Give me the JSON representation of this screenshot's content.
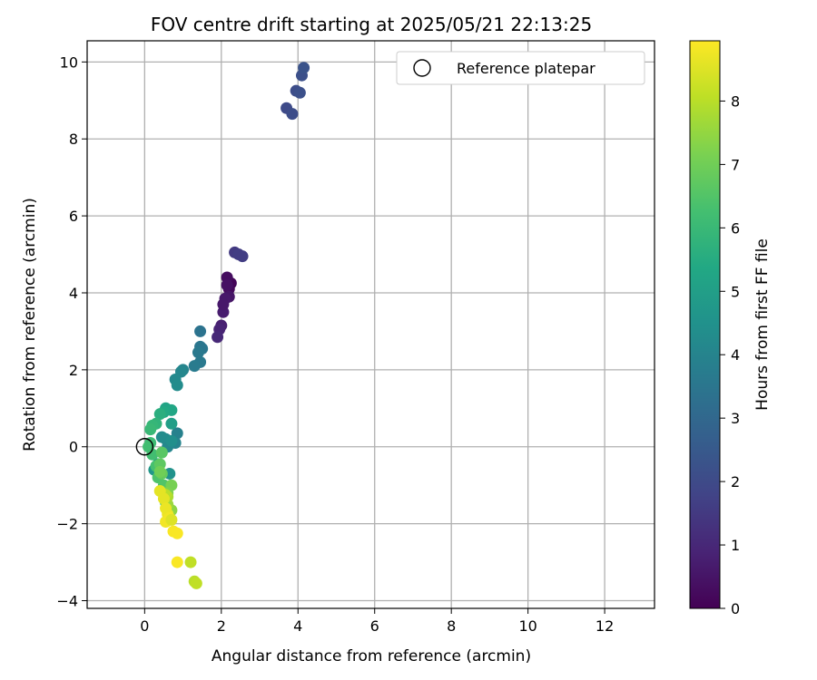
{
  "chart_data": {
    "type": "scatter",
    "title": "FOV centre drift starting at 2025/05/21 22:13:25",
    "xlabel": "Angular distance from reference (arcmin)",
    "ylabel": "Rotation from reference (arcmin)",
    "xlim": [
      -1.5,
      13.3
    ],
    "ylim": [
      -4.2,
      10.55
    ],
    "xticks": [
      0,
      2,
      4,
      6,
      8,
      10,
      12
    ],
    "yticks": [
      -4,
      -2,
      0,
      2,
      4,
      6,
      8,
      10
    ],
    "grid": true,
    "legend": {
      "placement": "top-right",
      "entries": [
        "Reference platepar"
      ]
    },
    "reference_point": {
      "name": "Reference platepar",
      "x": 0,
      "y": 0,
      "marker": "open-circle"
    },
    "colorbar": {
      "label": "Hours from first FF file",
      "colormap": "viridis",
      "range": [
        0,
        8.95
      ],
      "ticks": [
        0,
        1,
        2,
        3,
        4,
        5,
        6,
        7,
        8
      ]
    },
    "points": [
      {
        "x": 2.25,
        "y": 4.25,
        "c": 0.1
      },
      {
        "x": 2.2,
        "y": 4.1,
        "c": 0.2
      },
      {
        "x": 2.15,
        "y": 4.4,
        "c": 0.3
      },
      {
        "x": 2.2,
        "y": 3.9,
        "c": 0.5
      },
      {
        "x": 2.1,
        "y": 3.85,
        "c": 0.6
      },
      {
        "x": 2.05,
        "y": 3.5,
        "c": 0.7
      },
      {
        "x": 2.0,
        "y": 3.15,
        "c": 0.8
      },
      {
        "x": 1.95,
        "y": 3.05,
        "c": 0.9
      },
      {
        "x": 1.9,
        "y": 2.85,
        "c": 1.0
      },
      {
        "x": 2.05,
        "y": 3.7,
        "c": 0.6
      },
      {
        "x": 2.15,
        "y": 4.2,
        "c": 0.4
      },
      {
        "x": 2.35,
        "y": 5.05,
        "c": 1.5
      },
      {
        "x": 2.45,
        "y": 5.0,
        "c": 1.6
      },
      {
        "x": 2.55,
        "y": 4.95,
        "c": 1.6
      },
      {
        "x": 3.7,
        "y": 8.8,
        "c": 2.0
      },
      {
        "x": 3.85,
        "y": 8.65,
        "c": 2.1
      },
      {
        "x": 3.95,
        "y": 9.25,
        "c": 2.1
      },
      {
        "x": 4.05,
        "y": 9.2,
        "c": 2.2
      },
      {
        "x": 4.1,
        "y": 9.65,
        "c": 2.2
      },
      {
        "x": 4.15,
        "y": 9.85,
        "c": 2.3
      },
      {
        "x": 1.45,
        "y": 3.0,
        "c": 3.4
      },
      {
        "x": 1.45,
        "y": 2.6,
        "c": 3.5
      },
      {
        "x": 1.5,
        "y": 2.55,
        "c": 3.5
      },
      {
        "x": 1.4,
        "y": 2.45,
        "c": 3.6
      },
      {
        "x": 1.45,
        "y": 2.2,
        "c": 3.6
      },
      {
        "x": 1.3,
        "y": 2.1,
        "c": 3.7
      },
      {
        "x": 1.0,
        "y": 2.0,
        "c": 4.0
      },
      {
        "x": 0.95,
        "y": 1.95,
        "c": 4.1
      },
      {
        "x": 0.8,
        "y": 1.75,
        "c": 4.2
      },
      {
        "x": 0.85,
        "y": 1.6,
        "c": 4.3
      },
      {
        "x": 0.85,
        "y": 0.35,
        "c": 3.9
      },
      {
        "x": 0.8,
        "y": 0.1,
        "c": 4.0
      },
      {
        "x": 0.6,
        "y": 0.0,
        "c": 4.1
      },
      {
        "x": 0.55,
        "y": 0.2,
        "c": 4.2
      },
      {
        "x": 0.45,
        "y": 0.25,
        "c": 4.3
      },
      {
        "x": 0.7,
        "y": 0.15,
        "c": 4.4
      },
      {
        "x": 0.65,
        "y": -0.7,
        "c": 4.5
      },
      {
        "x": 0.35,
        "y": -0.45,
        "c": 4.6
      },
      {
        "x": 0.25,
        "y": -0.6,
        "c": 4.7
      },
      {
        "x": 0.7,
        "y": 0.6,
        "c": 5.0
      },
      {
        "x": 0.55,
        "y": 1.0,
        "c": 5.2
      },
      {
        "x": 0.7,
        "y": 0.95,
        "c": 5.3
      },
      {
        "x": 0.5,
        "y": 0.9,
        "c": 5.4
      },
      {
        "x": 0.4,
        "y": 0.85,
        "c": 5.6
      },
      {
        "x": 0.3,
        "y": 0.6,
        "c": 5.8
      },
      {
        "x": 0.2,
        "y": 0.55,
        "c": 5.9
      },
      {
        "x": 0.15,
        "y": 0.45,
        "c": 6.0
      },
      {
        "x": 0.15,
        "y": 0.1,
        "c": 6.1
      },
      {
        "x": 0.1,
        "y": 0.0,
        "c": 6.2
      },
      {
        "x": 0.2,
        "y": -0.2,
        "c": 6.2
      },
      {
        "x": 0.3,
        "y": -0.5,
        "c": 6.3
      },
      {
        "x": 0.35,
        "y": -0.8,
        "c": 6.4
      },
      {
        "x": 0.5,
        "y": -1.0,
        "c": 6.5
      },
      {
        "x": 0.55,
        "y": -1.45,
        "c": 6.6
      },
      {
        "x": 0.45,
        "y": -0.15,
        "c": 6.6
      },
      {
        "x": 0.4,
        "y": -0.45,
        "c": 6.7
      },
      {
        "x": 0.45,
        "y": -0.7,
        "c": 6.8
      },
      {
        "x": 0.4,
        "y": -0.65,
        "c": 7.0
      },
      {
        "x": 0.7,
        "y": -1.0,
        "c": 7.1
      },
      {
        "x": 0.6,
        "y": -1.2,
        "c": 7.2
      },
      {
        "x": 0.7,
        "y": -1.65,
        "c": 7.4
      },
      {
        "x": 0.6,
        "y": -1.5,
        "c": 7.6
      },
      {
        "x": 0.6,
        "y": -1.3,
        "c": 7.8
      },
      {
        "x": 0.55,
        "y": -1.25,
        "c": 8.0
      },
      {
        "x": 1.2,
        "y": -3.0,
        "c": 8.1
      },
      {
        "x": 1.3,
        "y": -3.5,
        "c": 8.0
      },
      {
        "x": 1.35,
        "y": -3.55,
        "c": 8.1
      },
      {
        "x": 0.4,
        "y": -1.15,
        "c": 8.6
      },
      {
        "x": 0.5,
        "y": -1.35,
        "c": 8.6
      },
      {
        "x": 0.55,
        "y": -1.6,
        "c": 8.7
      },
      {
        "x": 0.6,
        "y": -1.75,
        "c": 8.7
      },
      {
        "x": 0.55,
        "y": -1.95,
        "c": 8.8
      },
      {
        "x": 0.65,
        "y": -1.85,
        "c": 8.8
      },
      {
        "x": 0.75,
        "y": -2.2,
        "c": 8.9
      },
      {
        "x": 0.85,
        "y": -2.25,
        "c": 8.9
      },
      {
        "x": 0.85,
        "y": -3.0,
        "c": 8.9
      },
      {
        "x": 0.7,
        "y": -1.9,
        "c": 8.5
      }
    ]
  }
}
